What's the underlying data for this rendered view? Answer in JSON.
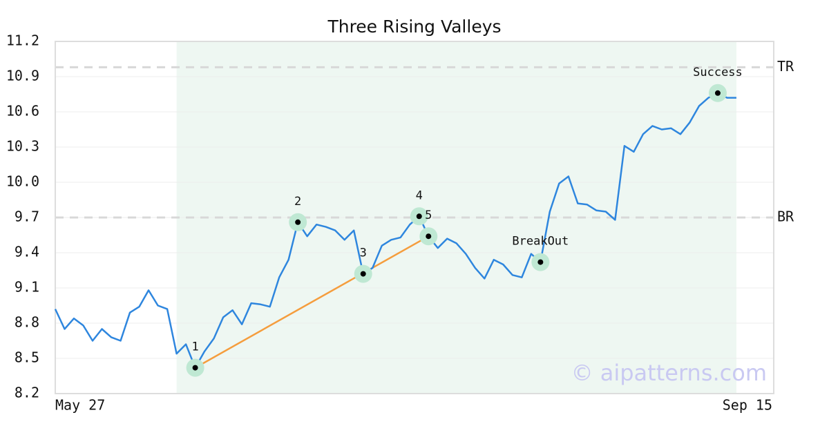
{
  "chart_data": {
    "type": "line",
    "title": "Three Rising Valleys",
    "categories": [
      "May 27",
      null,
      null,
      null,
      null,
      null,
      null,
      null,
      null,
      null,
      null,
      null,
      null,
      null,
      null,
      null,
      null,
      null,
      null,
      null,
      null,
      null,
      null,
      null,
      null,
      null,
      null,
      null,
      null,
      null,
      null,
      null,
      null,
      null,
      null,
      null,
      null,
      null,
      null,
      null,
      null,
      null,
      null,
      null,
      null,
      null,
      null,
      null,
      null,
      null,
      null,
      null,
      null,
      null,
      null,
      null,
      null,
      null,
      null,
      null,
      null,
      null,
      null,
      null,
      null,
      null,
      null,
      null,
      null,
      null,
      null,
      null,
      null,
      "Sep 15"
    ],
    "values": [
      8.92,
      8.75,
      8.84,
      8.78,
      8.65,
      8.75,
      8.68,
      8.65,
      8.89,
      8.94,
      9.08,
      8.95,
      8.92,
      8.54,
      8.62,
      8.42,
      8.56,
      8.67,
      8.85,
      8.91,
      8.79,
      8.97,
      8.96,
      8.94,
      9.19,
      9.34,
      9.66,
      9.54,
      9.64,
      9.62,
      9.59,
      9.51,
      9.59,
      9.22,
      9.27,
      9.46,
      9.51,
      9.53,
      9.64,
      9.71,
      9.54,
      9.44,
      9.52,
      9.48,
      9.39,
      9.27,
      9.18,
      9.34,
      9.3,
      9.21,
      9.19,
      9.39,
      9.32,
      9.75,
      9.99,
      10.05,
      9.82,
      9.81,
      9.76,
      9.75,
      9.68,
      10.31,
      10.26,
      10.41,
      10.48,
      10.45,
      10.46,
      10.41,
      10.51,
      10.65,
      10.72,
      10.76,
      10.72,
      10.72
    ],
    "color": "#2e86de",
    "ylim": [
      8.2,
      11.2
    ],
    "yticks": [
      8.2,
      8.5,
      8.8,
      9.1,
      9.4,
      9.7,
      {
        "value": 10.0,
        "label": "10.0"
      },
      10.3,
      10.6,
      10.9,
      11.2
    ],
    "grid": true,
    "highlight": {
      "from": 13,
      "to": 73,
      "color": "#eef7f2"
    },
    "markers": [
      {
        "x": 15,
        "label": "1"
      },
      {
        "x": 26,
        "label": "2"
      },
      {
        "x": 33,
        "label": "3"
      },
      {
        "x": 39,
        "label": "4"
      },
      {
        "x": 40,
        "label": "5"
      },
      {
        "x": 52,
        "label": "BreakOut"
      },
      {
        "x": 71,
        "label": "Success"
      }
    ],
    "trendline": {
      "from": 15,
      "to": 40,
      "color": "#f59d3d"
    },
    "hlines": [
      {
        "value": 10.98,
        "label": "TR"
      },
      {
        "value": 9.7,
        "label": "BR"
      }
    ],
    "watermark": "© aipatterns.com"
  }
}
